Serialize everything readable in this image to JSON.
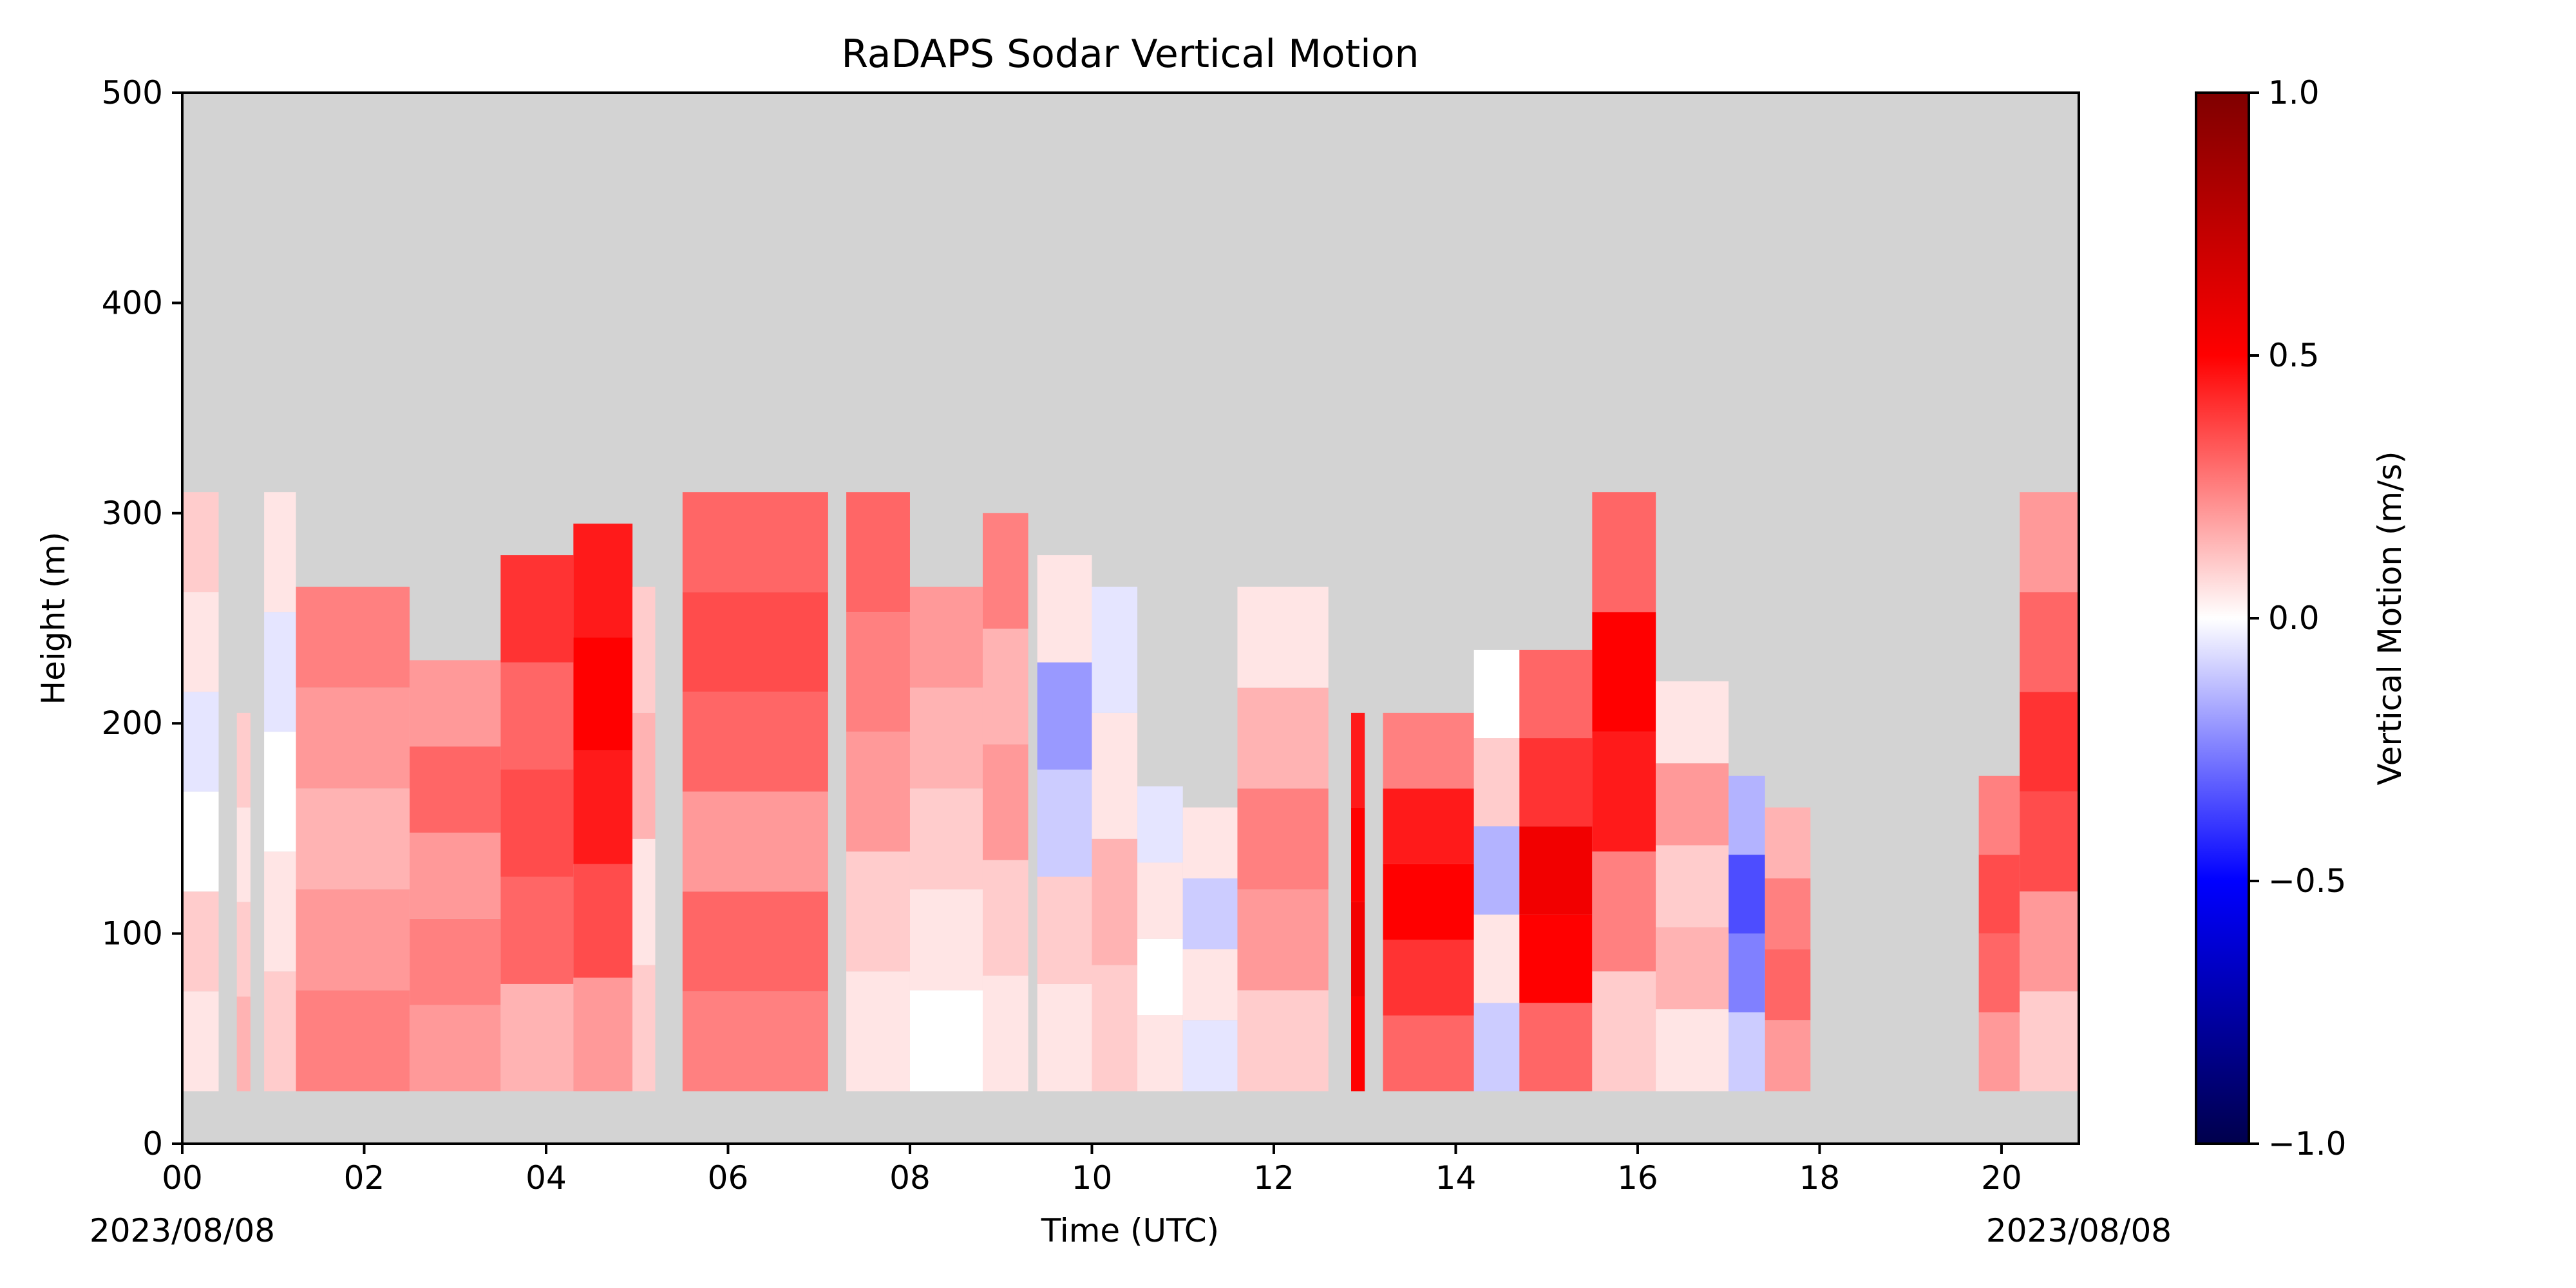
{
  "chart_data": {
    "type": "heatmap",
    "title": "RaDAPS Sodar Vertical Motion",
    "xlabel": "Time (UTC)",
    "ylabel": "Height (m)",
    "date_labels": {
      "left": "2023/08/08",
      "right": "2023/08/08"
    },
    "xlim": [
      0,
      20.85
    ],
    "ylim": [
      0,
      500
    ],
    "x_ticks": [
      0,
      2,
      4,
      6,
      8,
      10,
      12,
      14,
      16,
      18,
      20
    ],
    "x_tick_labels": [
      "00",
      "02",
      "04",
      "06",
      "08",
      "10",
      "12",
      "14",
      "16",
      "18",
      "20"
    ],
    "y_ticks": [
      0,
      100,
      200,
      300,
      400,
      500
    ],
    "y_tick_labels": [
      "0",
      "100",
      "200",
      "300",
      "400",
      "500"
    ],
    "background_color": "#d3d3d3",
    "grid": false,
    "colormap": "seismic",
    "colorbar": {
      "label": "Vertical Motion (m/s)",
      "range": [
        -1.0,
        1.0
      ],
      "ticks": [
        1.0,
        0.5,
        0.0,
        -0.5,
        -1.0
      ],
      "tick_labels": [
        "1.0",
        "0.5",
        "0.0",
        "−0.5",
        "−1.0"
      ],
      "stops": [
        "#00004c",
        "#0000ff",
        "#ffffff",
        "#ff0000",
        "#7f0000"
      ]
    },
    "data_bottom_m": 25,
    "columns": [
      {
        "t0": 0.0,
        "t1": 0.4,
        "top": 310,
        "w": [
          0.05,
          0.1,
          0.0,
          -0.05,
          0.05,
          0.1
        ]
      },
      {
        "t0": 0.6,
        "t1": 0.75,
        "top": 205,
        "w": [
          0.15,
          0.1,
          0.05,
          0.1
        ]
      },
      {
        "t0": 0.9,
        "t1": 1.25,
        "top": 310,
        "w": [
          0.1,
          0.05,
          0.0,
          -0.05,
          0.05
        ]
      },
      {
        "t0": 1.25,
        "t1": 2.5,
        "top": 265,
        "w": [
          0.25,
          0.2,
          0.15,
          0.2,
          0.25
        ]
      },
      {
        "t0": 2.5,
        "t1": 3.5,
        "top": 230,
        "w": [
          0.2,
          0.25,
          0.2,
          0.3,
          0.2
        ]
      },
      {
        "t0": 3.5,
        "t1": 4.3,
        "top": 280,
        "w": [
          0.15,
          0.3,
          0.35,
          0.3,
          0.4
        ]
      },
      {
        "t0": 4.3,
        "t1": 4.95,
        "top": 295,
        "w": [
          0.2,
          0.35,
          0.45,
          0.5,
          0.45
        ]
      },
      {
        "t0": 4.95,
        "t1": 5.2,
        "top": 265,
        "w": [
          0.1,
          0.05,
          0.15,
          0.1
        ]
      },
      {
        "t0": 5.5,
        "t1": 7.1,
        "top": 310,
        "w": [
          0.25,
          0.3,
          0.2,
          0.3,
          0.35,
          0.3
        ]
      },
      {
        "t0": 7.3,
        "t1": 8.0,
        "top": 310,
        "w": [
          0.05,
          0.1,
          0.2,
          0.25,
          0.3
        ]
      },
      {
        "t0": 8.0,
        "t1": 8.8,
        "top": 265,
        "w": [
          0.0,
          0.05,
          0.1,
          0.15,
          0.2
        ]
      },
      {
        "t0": 8.8,
        "t1": 9.3,
        "top": 300,
        "w": [
          0.05,
          0.1,
          0.2,
          0.15,
          0.25
        ]
      },
      {
        "t0": 9.4,
        "t1": 10.0,
        "top": 280,
        "w": [
          0.05,
          0.1,
          -0.1,
          -0.2,
          0.05
        ]
      },
      {
        "t0": 10.0,
        "t1": 10.5,
        "top": 265,
        "w": [
          0.1,
          0.15,
          0.05,
          -0.05
        ]
      },
      {
        "t0": 10.5,
        "t1": 11.0,
        "top": 170,
        "w": [
          0.05,
          0.0,
          0.05,
          -0.05
        ]
      },
      {
        "t0": 11.0,
        "t1": 11.6,
        "top": 160,
        "w": [
          -0.05,
          0.05,
          -0.1,
          0.05
        ]
      },
      {
        "t0": 11.6,
        "t1": 12.6,
        "top": 265,
        "w": [
          0.1,
          0.2,
          0.25,
          0.15,
          0.05
        ]
      },
      {
        "t0": 12.85,
        "t1": 13.0,
        "top": 205,
        "w": [
          0.5,
          0.55,
          0.5,
          0.45
        ]
      },
      {
        "t0": 13.2,
        "t1": 14.2,
        "top": 205,
        "w": [
          0.3,
          0.4,
          0.5,
          0.45,
          0.25
        ]
      },
      {
        "t0": 14.2,
        "t1": 14.7,
        "top": 235,
        "w": [
          -0.1,
          0.05,
          -0.15,
          0.1,
          0.0
        ]
      },
      {
        "t0": 14.7,
        "t1": 15.5,
        "top": 235,
        "w": [
          0.3,
          0.5,
          0.55,
          0.4,
          0.3
        ]
      },
      {
        "t0": 15.5,
        "t1": 16.2,
        "top": 310,
        "w": [
          0.1,
          0.25,
          0.45,
          0.5,
          0.3
        ]
      },
      {
        "t0": 16.2,
        "t1": 17.0,
        "top": 220,
        "w": [
          0.05,
          0.15,
          0.1,
          0.2,
          0.05
        ]
      },
      {
        "t0": 17.0,
        "t1": 17.4,
        "top": 175,
        "w": [
          -0.1,
          -0.25,
          -0.35,
          -0.15
        ]
      },
      {
        "t0": 17.4,
        "t1": 17.9,
        "top": 160,
        "w": [
          0.2,
          0.3,
          0.25,
          0.15
        ]
      },
      {
        "t0": 19.75,
        "t1": 20.2,
        "top": 175,
        "w": [
          0.2,
          0.3,
          0.35,
          0.25
        ]
      },
      {
        "t0": 20.2,
        "t1": 20.85,
        "top": 310,
        "w": [
          0.1,
          0.2,
          0.35,
          0.4,
          0.3,
          0.2
        ]
      }
    ]
  }
}
